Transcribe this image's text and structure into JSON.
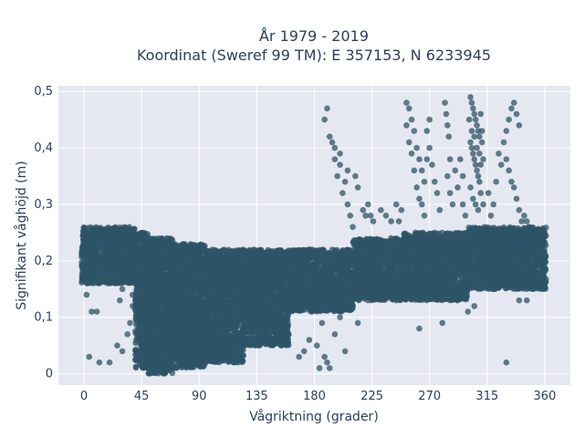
{
  "chart_data": {
    "type": "scatter",
    "title": [
      "År 1979 - 2019",
      "Koordinat (Sweref 99 TM): E 357153, N 6233945"
    ],
    "xlabel": "Vågriktning (grader)",
    "ylabel": "Signifikant våghöjd (m)",
    "xlim": [
      -20,
      380
    ],
    "ylim": [
      -0.02,
      0.51
    ],
    "xticks": [
      0,
      45,
      90,
      135,
      180,
      225,
      270,
      315,
      360
    ],
    "xtick_labels": [
      "0",
      "45",
      "90",
      "135",
      "180",
      "225",
      "270",
      "315",
      "360"
    ],
    "yticks": [
      0,
      0.1,
      0.2,
      0.3,
      0.4,
      0.5
    ],
    "ytick_labels": [
      "0",
      "0,1",
      "0,2",
      "0,3",
      "0,4",
      "0,5"
    ],
    "grid": true,
    "marker_color": "#2e5467",
    "background_color": "#e5e8f0",
    "dense_bands": [
      {
        "x": [
          -2,
          40
        ],
        "y": [
          0.16,
          0.26
        ]
      },
      {
        "x": [
          40,
          50
        ],
        "y": [
          0.01,
          0.25
        ]
      },
      {
        "x": [
          50,
          70
        ],
        "y": [
          0.0,
          0.24
        ]
      },
      {
        "x": [
          70,
          95
        ],
        "y": [
          0.01,
          0.23
        ]
      },
      {
        "x": [
          95,
          125
        ],
        "y": [
          0.02,
          0.22
        ]
      },
      {
        "x": [
          125,
          160
        ],
        "y": [
          0.05,
          0.22
        ]
      },
      {
        "x": [
          160,
          210
        ],
        "y": [
          0.11,
          0.22
        ]
      },
      {
        "x": [
          210,
          250
        ],
        "y": [
          0.13,
          0.24
        ]
      },
      {
        "x": [
          250,
          300
        ],
        "y": [
          0.13,
          0.25
        ]
      },
      {
        "x": [
          300,
          361
        ],
        "y": [
          0.15,
          0.26
        ]
      }
    ],
    "scatter_points": [
      [
        2,
        0.14
      ],
      [
        6,
        0.11
      ],
      [
        10,
        0.11
      ],
      [
        4,
        0.03
      ],
      [
        12,
        0.02
      ],
      [
        20,
        0.02
      ],
      [
        26,
        0.05
      ],
      [
        30,
        0.04
      ],
      [
        34,
        0.07
      ],
      [
        36,
        0.09
      ],
      [
        38,
        0.12
      ],
      [
        28,
        0.13
      ],
      [
        30,
        0.15
      ],
      [
        36,
        0.17
      ],
      [
        38,
        0.14
      ],
      [
        40,
        0.19
      ],
      [
        168,
        0.03
      ],
      [
        172,
        0.04
      ],
      [
        176,
        0.06
      ],
      [
        182,
        0.05
      ],
      [
        188,
        0.03
      ],
      [
        192,
        0.01
      ],
      [
        186,
        0.09
      ],
      [
        200,
        0.1
      ],
      [
        204,
        0.04
      ],
      [
        196,
        0.07
      ],
      [
        214,
        0.09
      ],
      [
        210,
        0.12
      ],
      [
        190,
        0.02
      ],
      [
        184,
        0.01
      ],
      [
        188,
        0.45
      ],
      [
        190,
        0.47
      ],
      [
        192,
        0.42
      ],
      [
        194,
        0.41
      ],
      [
        196,
        0.38
      ],
      [
        198,
        0.35
      ],
      [
        200,
        0.37
      ],
      [
        202,
        0.32
      ],
      [
        204,
        0.34
      ],
      [
        206,
        0.3
      ],
      [
        208,
        0.28
      ],
      [
        210,
        0.26
      ],
      [
        212,
        0.35
      ],
      [
        206,
        0.36
      ],
      [
        200,
        0.39
      ],
      [
        196,
        0.4
      ],
      [
        214,
        0.33
      ],
      [
        218,
        0.29
      ],
      [
        220,
        0.28
      ],
      [
        222,
        0.3
      ],
      [
        226,
        0.27
      ],
      [
        224,
        0.28
      ],
      [
        232,
        0.29
      ],
      [
        236,
        0.28
      ],
      [
        240,
        0.27
      ],
      [
        244,
        0.3
      ],
      [
        248,
        0.29
      ],
      [
        246,
        0.27
      ],
      [
        252,
        0.48
      ],
      [
        254,
        0.47
      ],
      [
        256,
        0.45
      ],
      [
        258,
        0.43
      ],
      [
        260,
        0.4
      ],
      [
        262,
        0.38
      ],
      [
        264,
        0.36
      ],
      [
        266,
        0.34
      ],
      [
        252,
        0.44
      ],
      [
        254,
        0.41
      ],
      [
        256,
        0.39
      ],
      [
        258,
        0.36
      ],
      [
        260,
        0.33
      ],
      [
        262,
        0.31
      ],
      [
        264,
        0.3
      ],
      [
        266,
        0.28
      ],
      [
        268,
        0.43
      ],
      [
        270,
        0.45
      ],
      [
        270,
        0.4
      ],
      [
        272,
        0.37
      ],
      [
        274,
        0.34
      ],
      [
        276,
        0.32
      ],
      [
        278,
        0.29
      ],
      [
        268,
        0.38
      ],
      [
        282,
        0.48
      ],
      [
        283,
        0.46
      ],
      [
        284,
        0.44
      ],
      [
        285,
        0.42
      ],
      [
        286,
        0.38
      ],
      [
        284,
        0.35
      ],
      [
        286,
        0.32
      ],
      [
        288,
        0.3
      ],
      [
        290,
        0.36
      ],
      [
        292,
        0.33
      ],
      [
        294,
        0.38
      ],
      [
        296,
        0.35
      ],
      [
        296,
        0.3
      ],
      [
        298,
        0.28
      ],
      [
        302,
        0.49
      ],
      [
        303,
        0.48
      ],
      [
        304,
        0.47
      ],
      [
        305,
        0.46
      ],
      [
        306,
        0.45
      ],
      [
        307,
        0.44
      ],
      [
        308,
        0.43
      ],
      [
        309,
        0.42
      ],
      [
        302,
        0.41
      ],
      [
        303,
        0.4
      ],
      [
        304,
        0.39
      ],
      [
        305,
        0.38
      ],
      [
        306,
        0.37
      ],
      [
        307,
        0.36
      ],
      [
        308,
        0.35
      ],
      [
        309,
        0.34
      ],
      [
        302,
        0.33
      ],
      [
        304,
        0.31
      ],
      [
        306,
        0.3
      ],
      [
        308,
        0.29
      ],
      [
        310,
        0.32
      ],
      [
        312,
        0.3
      ],
      [
        310,
        0.37
      ],
      [
        311,
        0.43
      ],
      [
        312,
        0.38
      ],
      [
        310,
        0.46
      ],
      [
        301,
        0.45
      ],
      [
        303,
        0.43
      ],
      [
        305,
        0.42
      ],
      [
        307,
        0.4
      ],
      [
        309,
        0.39
      ],
      [
        311,
        0.41
      ],
      [
        318,
        0.28
      ],
      [
        320,
        0.3
      ],
      [
        316,
        0.32
      ],
      [
        322,
        0.34
      ],
      [
        326,
        0.37
      ],
      [
        324,
        0.39
      ],
      [
        328,
        0.41
      ],
      [
        330,
        0.43
      ],
      [
        332,
        0.45
      ],
      [
        334,
        0.47
      ],
      [
        336,
        0.48
      ],
      [
        338,
        0.46
      ],
      [
        340,
        0.44
      ],
      [
        330,
        0.38
      ],
      [
        332,
        0.36
      ],
      [
        334,
        0.34
      ],
      [
        336,
        0.33
      ],
      [
        338,
        0.31
      ],
      [
        340,
        0.29
      ],
      [
        342,
        0.27
      ],
      [
        344,
        0.28
      ],
      [
        346,
        0.27
      ],
      [
        348,
        0.26
      ],
      [
        226,
        0.15
      ],
      [
        240,
        0.17
      ],
      [
        262,
        0.08
      ],
      [
        280,
        0.09
      ],
      [
        300,
        0.11
      ],
      [
        330,
        0.02
      ],
      [
        340,
        0.13
      ],
      [
        350,
        0.16
      ],
      [
        320,
        0.15
      ],
      [
        244,
        0.13
      ],
      [
        290,
        0.14
      ],
      [
        305,
        0.12
      ],
      [
        346,
        0.13
      ]
    ]
  }
}
